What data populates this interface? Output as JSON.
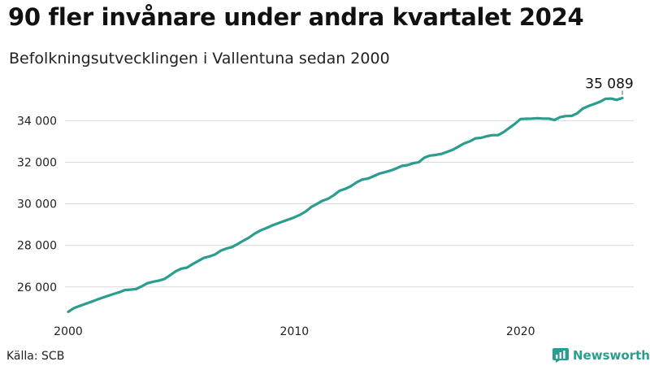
{
  "colors": {
    "line": "#2a9d8f",
    "grid": "#d9d9d9",
    "brand": "#2a9d8f"
  },
  "brand": {
    "name": "Newsworthy",
    "icon": "newsworthy-logo-icon"
  },
  "source": "Källa: SCB",
  "chart_data": {
    "type": "line",
    "title": "90 fler invånare under andra kvartalet 2024",
    "subtitle": "Befolkningsutvecklingen i Vallentuna sedan 2000",
    "xlabel": "",
    "ylabel": "",
    "xlim": [
      2000,
      2024.5
    ],
    "ylim": [
      24700,
      35500
    ],
    "x_ticks": [
      2000,
      2010,
      2020
    ],
    "x_tick_labels": [
      "2000",
      "2010",
      "2020"
    ],
    "y_ticks": [
      26000,
      28000,
      30000,
      32000,
      34000
    ],
    "y_tick_labels": [
      "26 000",
      "28 000",
      "30 000",
      "32 000",
      "34 000"
    ],
    "grid": "horizontal",
    "legend": "none",
    "end_label": "35 089",
    "series": [
      {
        "x": [
          2000.0,
          2000.25,
          2000.5,
          2000.75,
          2001.0,
          2001.25,
          2001.5,
          2001.75,
          2002.0,
          2002.25,
          2002.5,
          2002.75,
          2003.0,
          2003.25,
          2003.5,
          2003.75,
          2004.0,
          2004.25,
          2004.5,
          2004.75,
          2005.0,
          2005.25,
          2005.5,
          2005.75,
          2006.0,
          2006.25,
          2006.5,
          2006.75,
          2007.0,
          2007.25,
          2007.5,
          2007.75,
          2008.0,
          2008.25,
          2008.5,
          2008.75,
          2009.0,
          2009.25,
          2009.5,
          2009.75,
          2010.0,
          2010.25,
          2010.5,
          2010.75,
          2011.0,
          2011.25,
          2011.5,
          2011.75,
          2012.0,
          2012.25,
          2012.5,
          2012.75,
          2013.0,
          2013.25,
          2013.5,
          2013.75,
          2014.0,
          2014.25,
          2014.5,
          2014.75,
          2015.0,
          2015.25,
          2015.5,
          2015.75,
          2016.0,
          2016.25,
          2016.5,
          2016.75,
          2017.0,
          2017.25,
          2017.5,
          2017.75,
          2018.0,
          2018.25,
          2018.5,
          2018.75,
          2019.0,
          2019.25,
          2019.5,
          2019.75,
          2020.0,
          2020.25,
          2020.5,
          2020.75,
          2021.0,
          2021.25,
          2021.5,
          2021.75,
          2022.0,
          2022.25,
          2022.5,
          2022.75,
          2023.0,
          2023.25,
          2023.5,
          2023.75,
          2024.0,
          2024.25,
          2024.5
        ],
        "values": [
          24800,
          24980,
          25080,
          25180,
          25280,
          25380,
          25480,
          25570,
          25660,
          25740,
          25850,
          25870,
          25900,
          26030,
          26180,
          26250,
          26300,
          26380,
          26560,
          26750,
          26880,
          26930,
          27100,
          27250,
          27400,
          27470,
          27570,
          27750,
          27850,
          27920,
          28070,
          28230,
          28380,
          28570,
          28720,
          28830,
          28950,
          29050,
          29150,
          29250,
          29350,
          29470,
          29630,
          29850,
          30000,
          30150,
          30250,
          30420,
          30630,
          30720,
          30850,
          31030,
          31170,
          31210,
          31330,
          31450,
          31520,
          31600,
          31700,
          31820,
          31860,
          31950,
          32000,
          32220,
          32320,
          32350,
          32400,
          32500,
          32600,
          32750,
          32900,
          33000,
          33150,
          33170,
          33250,
          33300,
          33300,
          33450,
          33650,
          33850,
          34080,
          34090,
          34100,
          34120,
          34100,
          34100,
          34030,
          34170,
          34220,
          34230,
          34350,
          34580,
          34700,
          34800,
          34900,
          35050,
          35060,
          35000,
          35089
        ]
      }
    ]
  }
}
